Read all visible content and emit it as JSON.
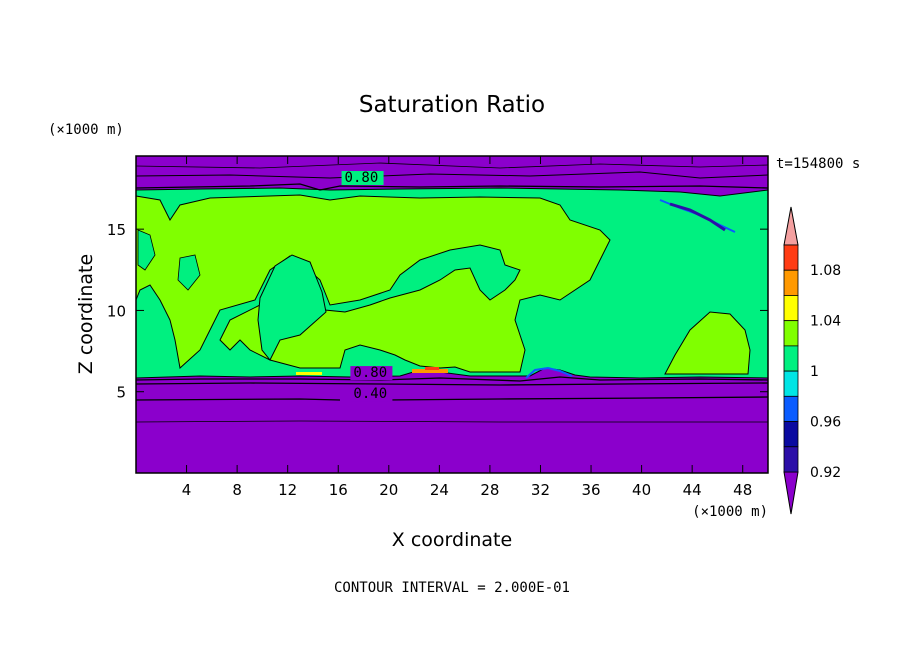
{
  "chart_data": {
    "type": "heatmap",
    "title": "Saturation Ratio",
    "xlabel": "X coordinate",
    "ylabel": "Z coordinate",
    "x_unit": "(×1000 m)",
    "y_unit": "(×1000 m)",
    "time_label": "t=154800 s",
    "footer": "CONTOUR INTERVAL = 2.000E-01",
    "xlim": [
      0,
      50
    ],
    "ylim": [
      0,
      19.5
    ],
    "x_ticks": [
      4,
      8,
      12,
      16,
      20,
      24,
      28,
      32,
      36,
      40,
      44,
      48
    ],
    "y_ticks": [
      5,
      10,
      15
    ],
    "contour_labels": [
      {
        "text": "0.80",
        "x": 16.5,
        "y": 17.9
      },
      {
        "text": "0.80",
        "x": 17.2,
        "y": 5.9
      },
      {
        "text": "0.40",
        "x": 17.2,
        "y": 4.6
      }
    ],
    "colorbar": {
      "labels": [
        "1.08",
        "1.04",
        "1",
        "0.96",
        "0.92"
      ],
      "levels": [
        0.9,
        0.92,
        0.94,
        0.96,
        0.98,
        1.0,
        1.02,
        1.04,
        1.06,
        1.08,
        1.1
      ],
      "colors": [
        "#8b00cc",
        "#2c0fa8",
        "#0a0aa0",
        "#0a5cff",
        "#00e5e5",
        "#00f080",
        "#80ff00",
        "#ffff00",
        "#ff9900",
        "#ff3c14",
        "#f4a0a0"
      ]
    },
    "regions": {
      "lower_dry_layer_top": 6.0,
      "moist_layer_top": 17.8,
      "upper_dry_layer_top": 19.5
    }
  }
}
